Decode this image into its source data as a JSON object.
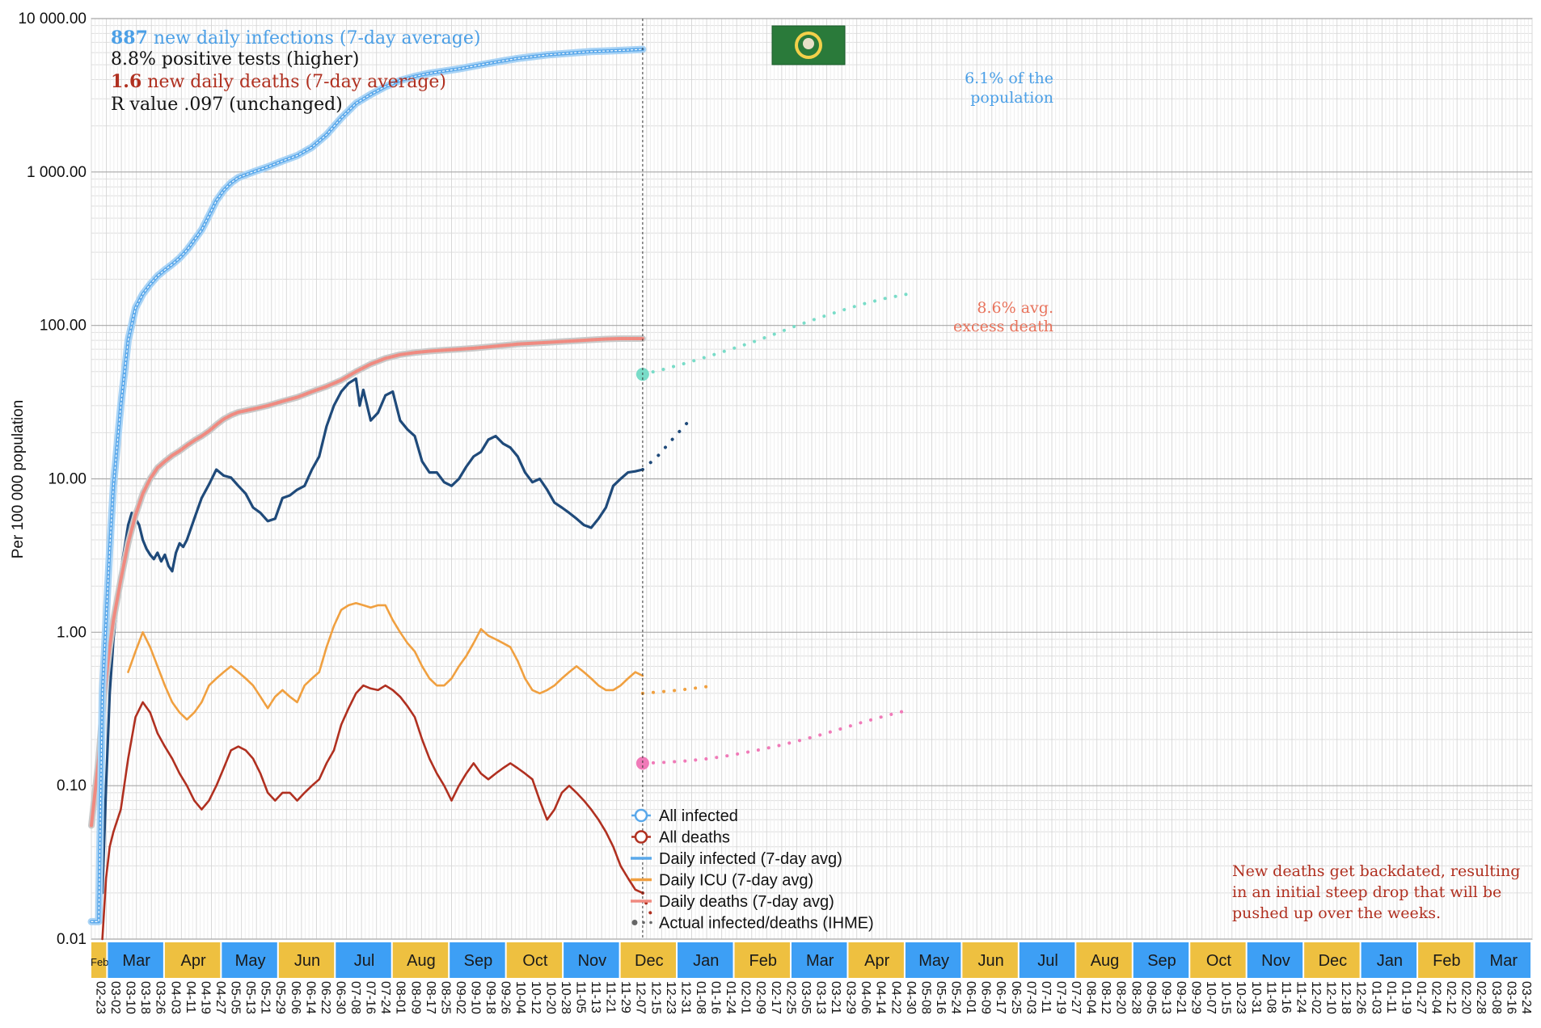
{
  "colors": {
    "infected": "#5aa8ea",
    "infected_light": "#a9d3f5",
    "deaths_cum": "#f08a80",
    "daily_infected": "#1f4a7a",
    "daily_icu": "#f0a040",
    "daily_deaths": "#b03020",
    "proj_infected": "#79dcc8",
    "proj_deaths": "#f07ab8",
    "month_blue": "#3d9ff5",
    "month_gold": "#eec040",
    "flag_green": "#2a7a3a",
    "annot_blue": "#4b9fe6",
    "annot_red": "#b03020",
    "annot_salmon": "#e8735c"
  },
  "stats": {
    "line1_value": "887",
    "line1_text": " new daily infections (7-day average)",
    "line2": "8.8% positive tests (higher)",
    "line3_value": "1.6",
    "line3_text": " new daily deaths (7-day average)",
    "line4": "R value .097 (unchanged)"
  },
  "annotations": {
    "population_line1": "6.1% of the",
    "population_line2": "population",
    "excess_line1": "8.6% avg.",
    "excess_line2": "excess death",
    "backdate_line1": "New deaths get backdated, resulting",
    "backdate_line2": "in an initial steep drop that will be",
    "backdate_line3": "pushed up over the weeks."
  },
  "legend": [
    {
      "label": "All infected",
      "kind": "open-circle",
      "color": "infected"
    },
    {
      "label": "All deaths",
      "kind": "open-circle",
      "color": "daily_deaths"
    },
    {
      "label": "Daily infected (7-day avg)",
      "kind": "line",
      "color": "infected"
    },
    {
      "label": "Daily ICU (7-day avg)",
      "kind": "line",
      "color": "daily_icu"
    },
    {
      "label": "Daily deaths (7-day avg)",
      "kind": "line",
      "color": "deaths_cum"
    },
    {
      "label": "Actual infected/deaths (IHME)",
      "kind": "dotted",
      "color": "daily_infected"
    }
  ],
  "chart_data": {
    "type": "line",
    "ylabel": "Per 100 000 population",
    "yscale": "log",
    "ylim": [
      0.01,
      10000
    ],
    "yticks": [
      "0.01",
      "0.10",
      "1.00",
      "10.00",
      "100.00",
      "1 000.00",
      "10 000.00"
    ],
    "x_index_range": [
      0,
      392
    ],
    "today_index": 150,
    "months": [
      "Feb",
      "Mar",
      "Apr",
      "May",
      "Jun",
      "Jul",
      "Aug",
      "Sep",
      "Oct",
      "Nov",
      "Dec",
      "Jan",
      "Feb",
      "Mar",
      "Apr",
      "May",
      "Jun",
      "Jul",
      "Aug",
      "Sep",
      "Oct",
      "Nov",
      "Dec",
      "Jan",
      "Feb",
      "Mar"
    ],
    "month_colors": [
      "gold",
      "blue",
      "gold",
      "blue",
      "gold",
      "blue",
      "gold",
      "blue",
      "gold",
      "blue",
      "gold",
      "blue",
      "gold",
      "blue",
      "gold",
      "blue",
      "gold",
      "blue",
      "gold",
      "blue",
      "gold",
      "blue",
      "gold",
      "blue",
      "gold",
      "blue"
    ],
    "date_ticks": [
      "02-23",
      "03-02",
      "03-10",
      "03-18",
      "03-26",
      "04-03",
      "04-11",
      "04-19",
      "04-27",
      "05-05",
      "05-13",
      "05-21",
      "05-29",
      "06-06",
      "06-14",
      "06-22",
      "06-30",
      "07-08",
      "07-16",
      "07-24",
      "08-01",
      "08-09",
      "08-17",
      "08-25",
      "09-02",
      "09-10",
      "09-18",
      "09-26",
      "10-04",
      "10-12",
      "10-20",
      "10-28",
      "11-05",
      "11-13",
      "11-21",
      "11-29",
      "12-07",
      "12-15",
      "12-23",
      "12-31",
      "01-08",
      "01-16",
      "01-24",
      "02-01",
      "02-09",
      "02-17",
      "02-25",
      "03-05",
      "03-13",
      "03-21",
      "03-29",
      "04-06",
      "04-14",
      "04-22",
      "04-30",
      "05-08",
      "05-16",
      "05-24",
      "06-01",
      "06-09",
      "06-17",
      "06-25",
      "07-03",
      "07-11",
      "07-19",
      "07-27",
      "08-04",
      "08-12",
      "08-20",
      "08-28",
      "09-05",
      "09-13",
      "09-21",
      "09-29",
      "10-07",
      "10-15",
      "10-23",
      "10-31",
      "11-08",
      "11-16",
      "11-24",
      "12-02",
      "12-10",
      "12-18",
      "12-26",
      "01-03",
      "01-11",
      "01-19",
      "01-27",
      "02-04",
      "02-12",
      "02-20",
      "02-28",
      "03-08",
      "03-16",
      "03-24"
    ],
    "series": [
      {
        "name": "All infected",
        "key": "cum_infected",
        "x": [
          0,
          1,
          2,
          3,
          4,
          5,
          6,
          8,
          10,
          12,
          14,
          16,
          18,
          20,
          22,
          24,
          26,
          28,
          30,
          32,
          34,
          36,
          38,
          40,
          44,
          48,
          52,
          56,
          60,
          64,
          68,
          72,
          76,
          80,
          84,
          88,
          92,
          96,
          100,
          104,
          108,
          112,
          116,
          120,
          124,
          128,
          132,
          136,
          140,
          144,
          150
        ],
        "values": [
          0.013,
          0.013,
          0.013,
          0.4,
          1.2,
          3.5,
          9,
          30,
          80,
          130,
          160,
          185,
          210,
          230,
          250,
          275,
          310,
          360,
          420,
          520,
          650,
          760,
          850,
          920,
          1000,
          1080,
          1180,
          1280,
          1450,
          1750,
          2250,
          2800,
          3200,
          3600,
          3950,
          4200,
          4400,
          4550,
          4700,
          4900,
          5100,
          5300,
          5500,
          5650,
          5800,
          5900,
          6000,
          6100,
          6150,
          6200,
          6300
        ]
      },
      {
        "name": "All deaths",
        "key": "cum_deaths",
        "x": [
          0,
          1,
          2,
          3,
          4,
          5,
          6,
          8,
          10,
          12,
          14,
          16,
          18,
          20,
          22,
          24,
          26,
          28,
          30,
          32,
          34,
          36,
          38,
          40,
          44,
          48,
          52,
          56,
          60,
          64,
          68,
          72,
          76,
          80,
          84,
          88,
          92,
          96,
          100,
          104,
          108,
          112,
          116,
          120,
          124,
          128,
          132,
          136,
          140,
          144,
          150
        ],
        "values": [
          0.055,
          0.09,
          0.15,
          0.3,
          0.5,
          0.8,
          1.2,
          2.2,
          3.8,
          5.8,
          8,
          10,
          11.8,
          13,
          14.2,
          15.2,
          16.5,
          17.8,
          19,
          20.5,
          22.5,
          24.5,
          26,
          27.2,
          28.5,
          30,
          32,
          34,
          37,
          40,
          44,
          50,
          56,
          61,
          64.5,
          66.5,
          68,
          69,
          70,
          71,
          72.5,
          74,
          75.5,
          76.5,
          77.5,
          78.5,
          79.5,
          80.5,
          81.5,
          82,
          82
        ]
      },
      {
        "name": "Daily infected (7-day avg)",
        "key": "daily_infected",
        "x": [
          3,
          4,
          5,
          6,
          7,
          8,
          9,
          10,
          11,
          12,
          13,
          14,
          15,
          16,
          17,
          18,
          19,
          20,
          21,
          22,
          23,
          24,
          25,
          26,
          28,
          30,
          32,
          34,
          36,
          38,
          40,
          42,
          44,
          46,
          48,
          50,
          52,
          54,
          56,
          58,
          60,
          62,
          64,
          66,
          68,
          70,
          72,
          73,
          74,
          76,
          78,
          80,
          82,
          84,
          86,
          88,
          90,
          92,
          94,
          96,
          98,
          100,
          102,
          104,
          106,
          108,
          110,
          112,
          114,
          116,
          118,
          120,
          122,
          124,
          126,
          128,
          130,
          132,
          134,
          136,
          138,
          140,
          142,
          144,
          146,
          148,
          150
        ],
        "values": [
          0.02,
          0.1,
          0.4,
          0.9,
          1.5,
          2.5,
          3.5,
          5.0,
          6.0,
          5.5,
          5.0,
          4.0,
          3.5,
          3.2,
          3.0,
          3.3,
          2.9,
          3.2,
          2.7,
          2.5,
          3.3,
          3.8,
          3.6,
          4.0,
          5.5,
          7.5,
          9.2,
          11.5,
          10.5,
          10.2,
          9.0,
          8.0,
          6.5,
          6.0,
          5.3,
          5.5,
          7.5,
          7.8,
          8.5,
          9.0,
          11.5,
          14,
          22,
          30,
          37,
          42,
          45,
          30,
          38,
          24,
          27,
          35,
          37,
          24,
          21,
          19,
          13,
          11,
          11,
          9.5,
          9.0,
          10,
          12,
          14,
          15,
          18,
          19,
          17,
          16,
          14,
          11,
          9.5,
          10,
          8.5,
          7.0,
          6.5,
          6.0,
          5.5,
          5.0,
          4.8,
          5.5,
          6.5,
          9,
          10,
          11,
          11.2,
          11.5
        ]
      },
      {
        "name": "Daily ICU (7-day avg)",
        "key": "daily_icu",
        "x": [
          10,
          12,
          14,
          16,
          18,
          20,
          22,
          24,
          26,
          28,
          30,
          32,
          34,
          36,
          38,
          40,
          42,
          44,
          46,
          48,
          50,
          52,
          54,
          56,
          58,
          60,
          62,
          64,
          66,
          68,
          70,
          72,
          74,
          76,
          78,
          80,
          82,
          84,
          86,
          88,
          90,
          92,
          94,
          96,
          98,
          100,
          102,
          104,
          106,
          108,
          110,
          112,
          114,
          116,
          118,
          120,
          122,
          124,
          126,
          128,
          130,
          132,
          134,
          136,
          138,
          140,
          142,
          144,
          146,
          148,
          150
        ],
        "values": [
          0.55,
          0.75,
          1.0,
          0.8,
          0.6,
          0.45,
          0.35,
          0.3,
          0.27,
          0.3,
          0.35,
          0.45,
          0.5,
          0.55,
          0.6,
          0.55,
          0.5,
          0.45,
          0.38,
          0.32,
          0.38,
          0.42,
          0.38,
          0.35,
          0.45,
          0.5,
          0.55,
          0.8,
          1.1,
          1.4,
          1.5,
          1.55,
          1.5,
          1.45,
          1.5,
          1.5,
          1.2,
          1.0,
          0.85,
          0.75,
          0.6,
          0.5,
          0.45,
          0.45,
          0.5,
          0.6,
          0.7,
          0.85,
          1.05,
          0.95,
          0.9,
          0.85,
          0.8,
          0.65,
          0.5,
          0.42,
          0.4,
          0.42,
          0.45,
          0.5,
          0.55,
          0.6,
          0.55,
          0.5,
          0.45,
          0.42,
          0.42,
          0.45,
          0.5,
          0.55,
          0.52
        ]
      },
      {
        "name": "Daily deaths (7-day avg)",
        "key": "daily_deaths",
        "x": [
          3,
          4,
          5,
          6,
          8,
          10,
          12,
          14,
          16,
          18,
          20,
          22,
          24,
          26,
          28,
          30,
          32,
          34,
          36,
          38,
          40,
          42,
          44,
          46,
          48,
          50,
          52,
          54,
          56,
          58,
          60,
          62,
          64,
          66,
          68,
          70,
          72,
          74,
          76,
          78,
          80,
          82,
          84,
          86,
          88,
          90,
          92,
          94,
          96,
          98,
          100,
          102,
          104,
          106,
          108,
          110,
          112,
          114,
          116,
          118,
          120,
          122,
          124,
          126,
          128,
          130,
          132,
          134,
          136,
          138,
          140,
          142,
          144,
          146,
          148,
          150
        ],
        "values": [
          0.01,
          0.025,
          0.04,
          0.05,
          0.07,
          0.15,
          0.28,
          0.35,
          0.3,
          0.22,
          0.18,
          0.15,
          0.12,
          0.1,
          0.08,
          0.07,
          0.08,
          0.1,
          0.13,
          0.17,
          0.18,
          0.17,
          0.15,
          0.12,
          0.09,
          0.08,
          0.09,
          0.09,
          0.08,
          0.09,
          0.1,
          0.11,
          0.14,
          0.17,
          0.25,
          0.32,
          0.4,
          0.45,
          0.43,
          0.42,
          0.45,
          0.42,
          0.38,
          0.33,
          0.28,
          0.2,
          0.15,
          0.12,
          0.1,
          0.08,
          0.1,
          0.12,
          0.14,
          0.12,
          0.11,
          0.12,
          0.13,
          0.14,
          0.13,
          0.12,
          0.11,
          0.08,
          0.06,
          0.07,
          0.09,
          0.1,
          0.09,
          0.08,
          0.07,
          0.06,
          0.05,
          0.04,
          0.03,
          0.025,
          0.021,
          0.02
        ]
      }
    ],
    "projections": [
      {
        "key": "proj_infected_cum",
        "color": "proj_infected",
        "x": [
          150,
          156,
          162,
          168,
          174,
          180,
          186,
          192,
          198,
          204,
          210,
          216,
          222
        ],
        "values": [
          48,
          52,
          57,
          63,
          70,
          78,
          88,
          100,
          112,
          125,
          138,
          150,
          160
        ]
      },
      {
        "key": "proj_deaths_cum",
        "color": "proj_deaths",
        "x": [
          150,
          156,
          162,
          168,
          174,
          180,
          186,
          192,
          198,
          204,
          210,
          216,
          222
        ],
        "values": [
          0.14,
          0.142,
          0.145,
          0.15,
          0.158,
          0.168,
          0.18,
          0.195,
          0.213,
          0.235,
          0.26,
          0.285,
          0.31
        ]
      },
      {
        "key": "proj_daily_infected",
        "color": "daily_infected",
        "x": [
          150,
          154,
          158,
          162
        ],
        "values": [
          11.5,
          14,
          18,
          23
        ]
      },
      {
        "key": "proj_daily_icu",
        "color": "daily_icu",
        "x": [
          150,
          160,
          170
        ],
        "values": [
          0.4,
          0.42,
          0.45
        ]
      },
      {
        "key": "proj_daily_deaths",
        "color": "daily_deaths",
        "x": [
          150,
          151,
          152,
          153
        ],
        "values": [
          0.02,
          0.017,
          0.015,
          0.013
        ]
      }
    ],
    "marker_points": [
      {
        "key": "infected-cum-marker",
        "x": 150,
        "value": 48,
        "color": "proj_infected"
      },
      {
        "key": "deaths-cum-marker",
        "x": 150,
        "value": 0.14,
        "color": "proj_deaths"
      }
    ]
  }
}
